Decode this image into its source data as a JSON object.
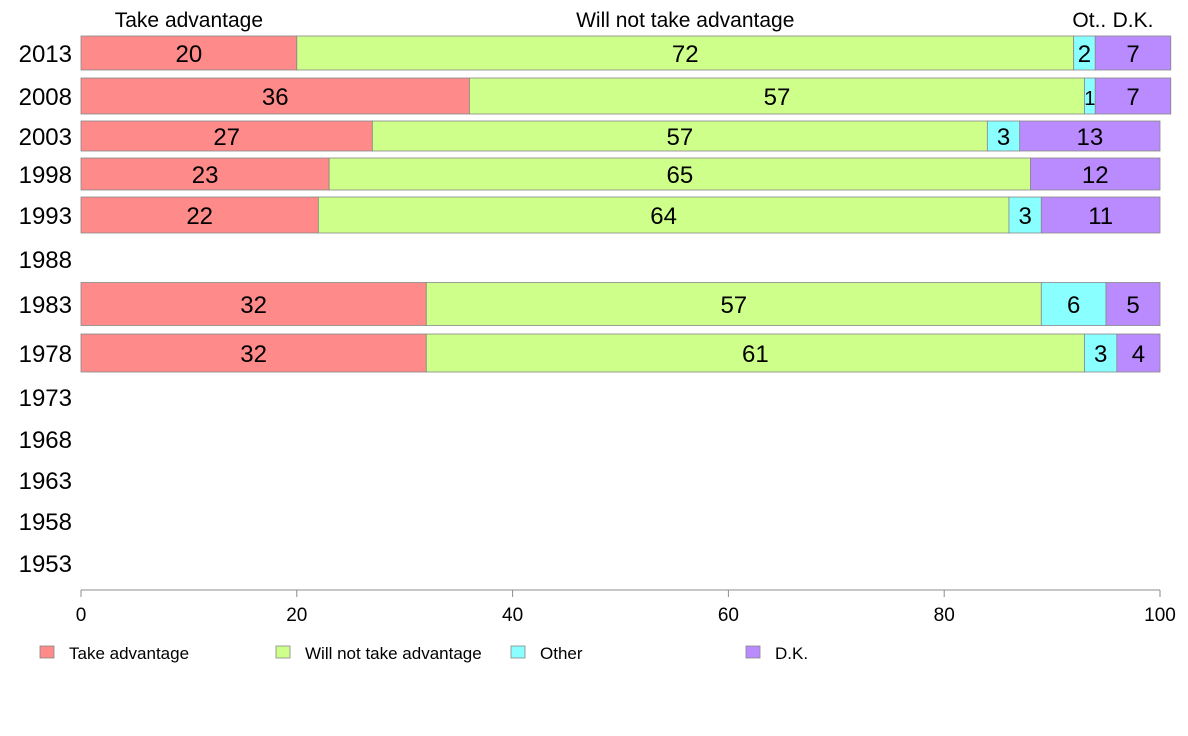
{
  "chart_data": {
    "type": "bar",
    "orientation": "horizontal",
    "stacked": true,
    "categories": [
      "2013",
      "2008",
      "2003",
      "1998",
      "1993",
      "1988",
      "1983",
      "1978",
      "1973",
      "1968",
      "1963",
      "1958",
      "1953"
    ],
    "series": [
      {
        "name": "Take advantage",
        "color": "#ff8a8a",
        "values": [
          20,
          36,
          27,
          23,
          22,
          null,
          32,
          32,
          null,
          null,
          null,
          null,
          null
        ]
      },
      {
        "name": "Will not take advantage",
        "color": "#cdff8a",
        "values": [
          72,
          57,
          57,
          65,
          64,
          null,
          57,
          61,
          null,
          null,
          null,
          null,
          null
        ]
      },
      {
        "name": "Other",
        "color": "#8affff",
        "values": [
          2,
          1,
          3,
          0,
          3,
          null,
          6,
          3,
          null,
          null,
          null,
          null,
          null
        ]
      },
      {
        "name": "D.K.",
        "color": "#ba8aff",
        "values": [
          7,
          7,
          13,
          12,
          11,
          null,
          5,
          4,
          null,
          null,
          null,
          null,
          null
        ]
      }
    ],
    "top_labels": [
      "Take advantage",
      "Will not take advantage",
      "Ot..",
      "D.K."
    ],
    "x_ticks": [
      "0",
      "20",
      "40",
      "60",
      "80",
      "100"
    ],
    "xlim": [
      0,
      100
    ],
    "grid": false,
    "legend_position": "bottom",
    "title": "",
    "xlabel": "",
    "ylabel": ""
  }
}
